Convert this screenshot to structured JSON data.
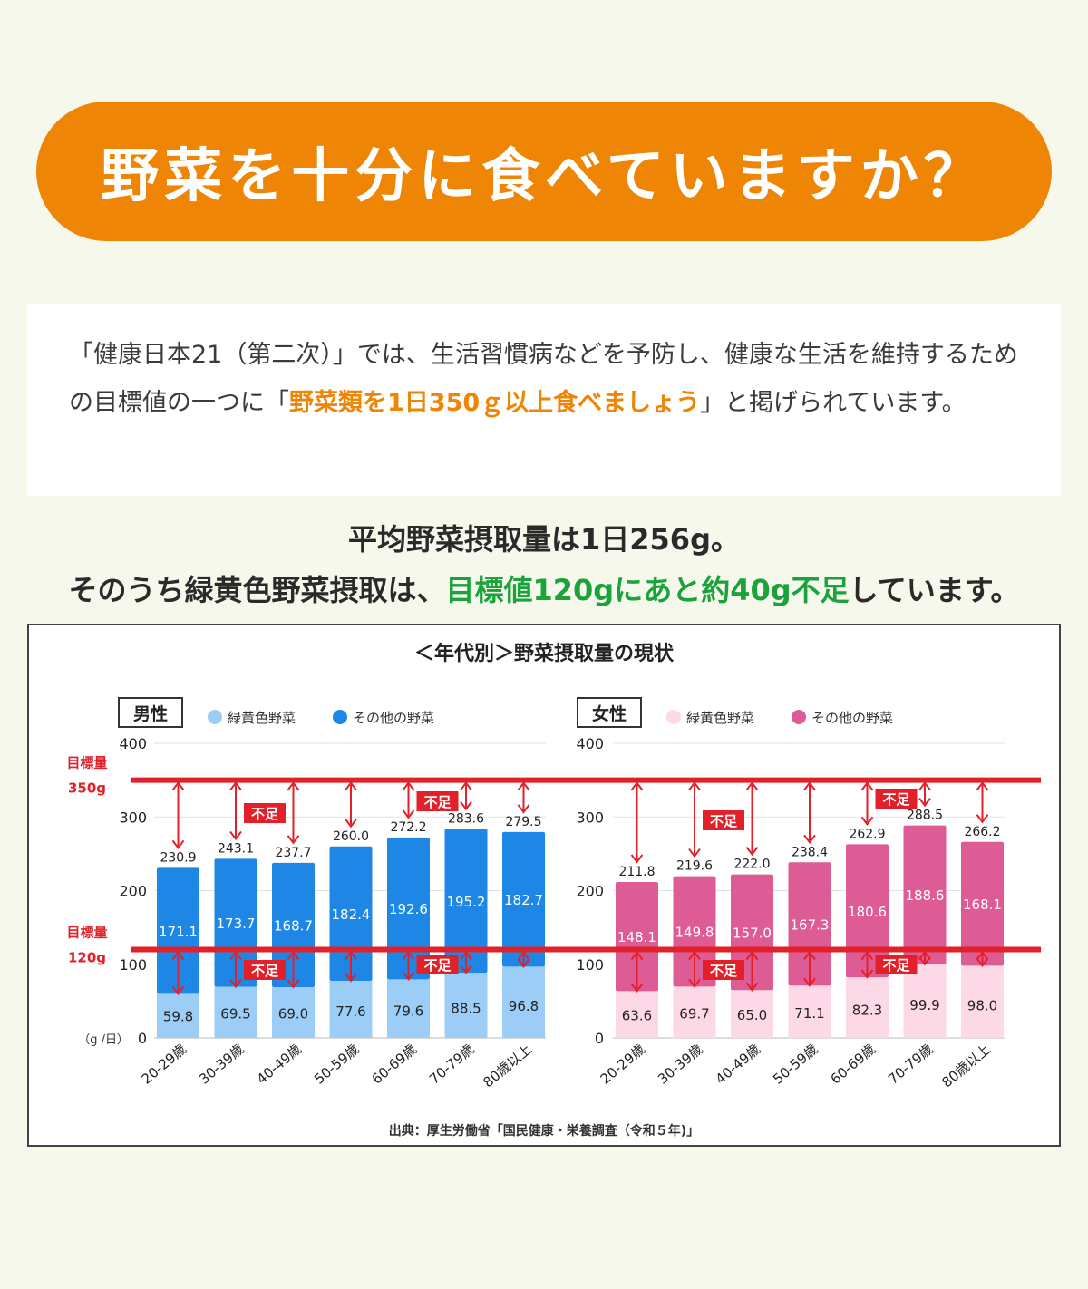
{
  "banner": {
    "title": "野菜を十分に食べていますか？"
  },
  "intro": {
    "text_before": "「健康日本21（第二次）」では、生活習慣病などを予防し、健康な生活を維持するための目標値の一つに「",
    "highlight": "野菜類を1日350ｇ以上食べましょう",
    "text_after": "」と掲げられています。"
  },
  "summary": {
    "line1": "平均野菜摂取量は1日256g。",
    "line2_before": "そのうち緑黄色野菜摂取は、",
    "line2_green": "目標値120gにあと約40g不足",
    "line2_after": "しています。"
  },
  "colors": {
    "banner": "#ee8505",
    "male_green_yellow": "#9ccdf6",
    "male_other": "#1e87e6",
    "female_green_yellow": "#fdd9e8",
    "female_other": "#dd5c95",
    "target_line": "#e2202a",
    "highlight_green": "#1aa33a"
  },
  "chart_data": {
    "type": "bar",
    "title": "＜年代別＞野菜摂取量の現状",
    "source": "出典：厚生労働省「国民健康・栄養調査（令和５年)」",
    "categories": [
      "20-29歳",
      "30-39歳",
      "40-49歳",
      "50-59歳",
      "60-69歳",
      "70-79歳",
      "80歳以上"
    ],
    "ylim": [
      0,
      400
    ],
    "yticks": [
      "0",
      "100",
      "200",
      "300",
      "400"
    ],
    "yunit": "（g /日）",
    "targets": [
      {
        "label": "目標量",
        "value_label": "350g",
        "value": 350
      },
      {
        "label": "目標量",
        "value_label": "120g",
        "value": 120
      }
    ],
    "shortage_label": "不足",
    "panels": [
      {
        "name": "男性",
        "series": [
          {
            "name": "緑黄色野菜",
            "values": [
              59.8,
              69.5,
              69.0,
              77.6,
              79.6,
              88.5,
              96.8
            ]
          },
          {
            "name": "その他の野菜",
            "values": [
              171.1,
              173.7,
              168.7,
              182.4,
              192.6,
              195.2,
              182.7
            ]
          }
        ],
        "totals": [
          230.9,
          243.1,
          237.7,
          260.0,
          272.2,
          283.6,
          279.5
        ],
        "totals_text": [
          "230.9",
          "243.1",
          "237.7",
          "260.0",
          "272.2",
          "283.6",
          "279.5"
        ],
        "green_text": [
          "59.8",
          "69.5",
          "69.0",
          "77.6",
          "79.6",
          "88.5",
          "96.8"
        ],
        "other_text": [
          "171.1",
          "173.7",
          "168.7",
          "182.4",
          "192.6",
          "195.2",
          "182.7"
        ]
      },
      {
        "name": "女性",
        "series": [
          {
            "name": "緑黄色野菜",
            "values": [
              63.6,
              69.7,
              65.0,
              71.1,
              82.3,
              99.9,
              98.0
            ]
          },
          {
            "name": "その他の野菜",
            "values": [
              148.1,
              149.8,
              157.0,
              167.3,
              180.6,
              188.6,
              168.1
            ]
          }
        ],
        "totals": [
          211.8,
          219.6,
          222.0,
          238.4,
          262.9,
          288.5,
          266.2
        ],
        "totals_text": [
          "211.8",
          "219.6",
          "222.0",
          "238.4",
          "262.9",
          "288.5",
          "266.2"
        ],
        "green_text": [
          "63.6",
          "69.7",
          "65.0",
          "71.1",
          "82.3",
          "99.9",
          "98.0"
        ],
        "other_text": [
          "148.1",
          "149.8",
          "157.0",
          "167.3",
          "180.6",
          "188.6",
          "168.1"
        ]
      }
    ]
  }
}
